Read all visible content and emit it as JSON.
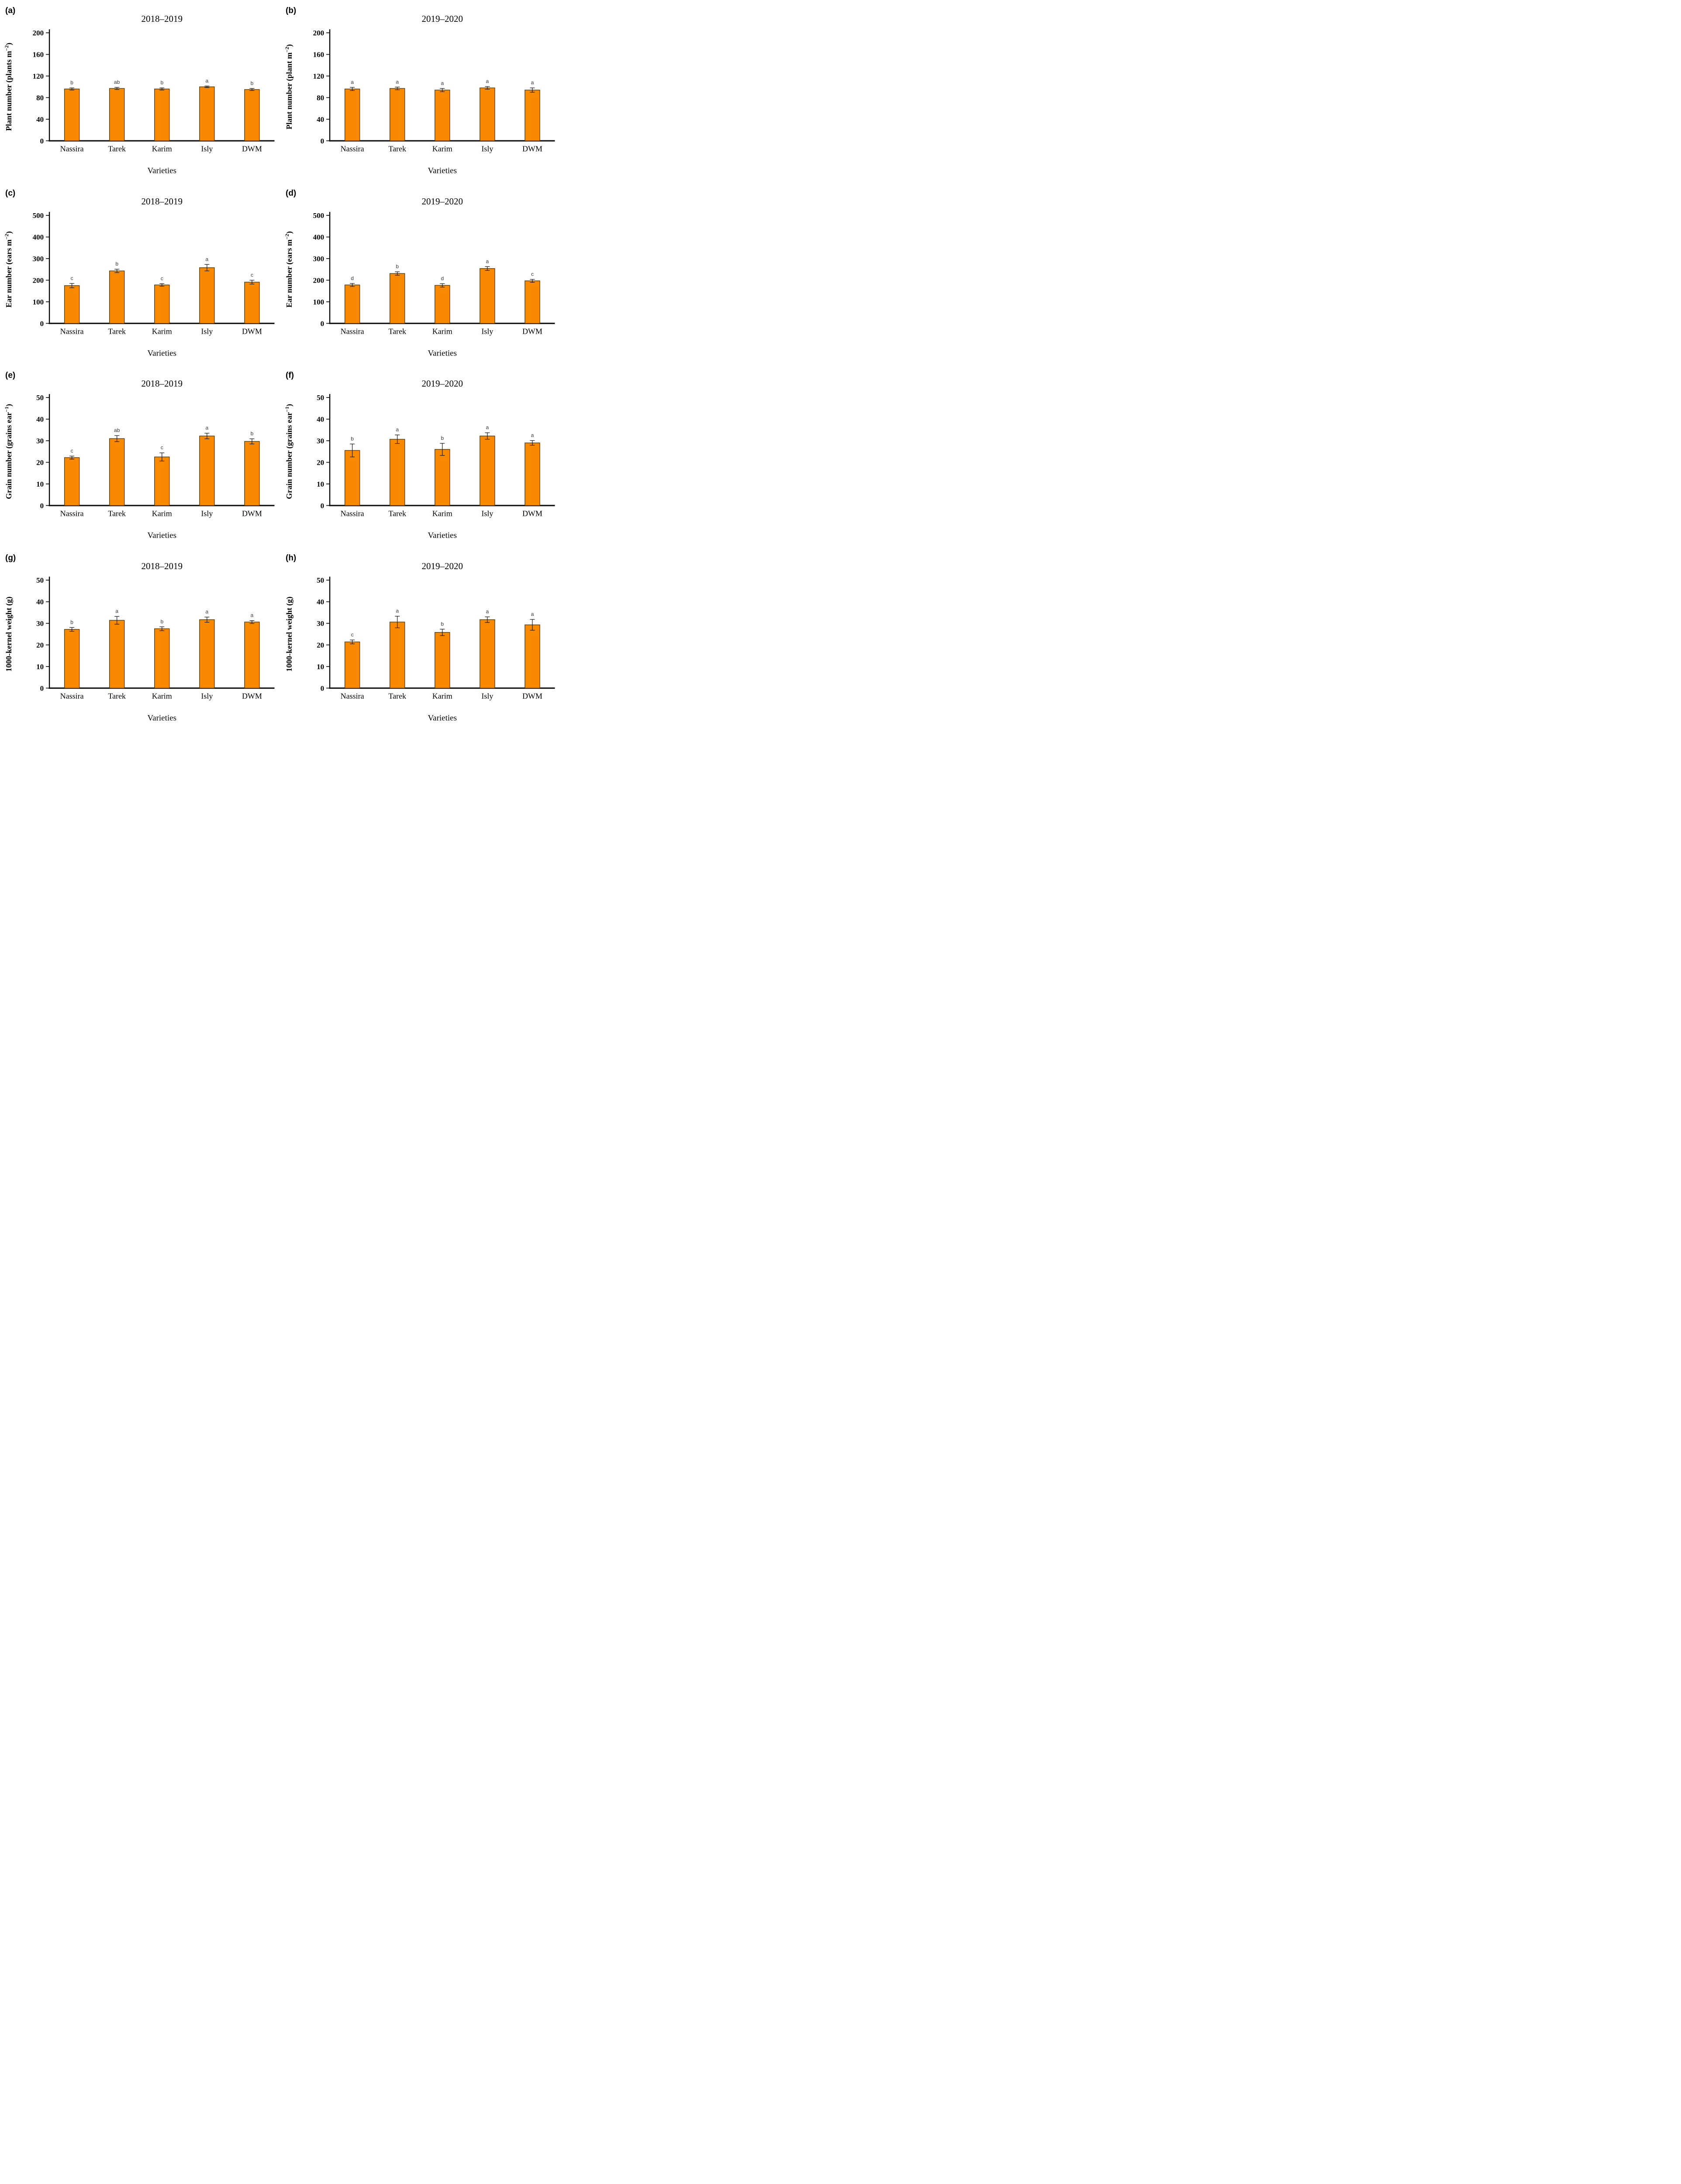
{
  "figure": {
    "bar_fill": "#F98A00",
    "bar_stroke": "#5A3A00",
    "error_bar_color": "#111111",
    "letter_color": "#333333"
  },
  "chart_data": [
    {
      "id": "a",
      "panel_label": "(a)",
      "type": "bar",
      "title": "2018–2019",
      "ylabel": "Plant number (plants m−2)",
      "ylabel_parts": [
        [
          "t",
          "Plant number (plants m"
        ],
        [
          "sup",
          "−2"
        ],
        [
          "t",
          ")"
        ]
      ],
      "xlabel": "Varieties",
      "ylim": [
        0,
        200
      ],
      "yticks": [
        0,
        40,
        80,
        120,
        160,
        200
      ],
      "categories": [
        "Nassira",
        "Tarek",
        "Karim",
        "Isly",
        "DWM"
      ],
      "values": [
        96,
        97,
        96,
        100,
        95
      ],
      "errors": [
        2,
        2,
        2,
        1.5,
        2
      ],
      "letters": [
        "b",
        "ab",
        "b",
        "a",
        "b"
      ],
      "grid": false,
      "legend": "none"
    },
    {
      "id": "b",
      "panel_label": "(b)",
      "type": "bar",
      "title": "2019–2020",
      "ylabel": "Plant number (plant m−2)",
      "ylabel_parts": [
        [
          "t",
          "Plant number (plant m"
        ],
        [
          "sup",
          "−2"
        ],
        [
          "t",
          ")"
        ]
      ],
      "xlabel": "Varieties",
      "ylim": [
        0,
        200
      ],
      "yticks": [
        0,
        40,
        80,
        120,
        160,
        200
      ],
      "categories": [
        "Nassira",
        "Tarek",
        "Karim",
        "Isly",
        "DWM"
      ],
      "values": [
        96,
        97,
        94,
        98,
        94
      ],
      "errors": [
        3,
        2.5,
        3,
        2.5,
        4
      ],
      "letters": [
        "a",
        "a",
        "a",
        "a",
        "a"
      ],
      "grid": false,
      "legend": "none"
    },
    {
      "id": "c",
      "panel_label": "(c)",
      "type": "bar",
      "title": "2018–2019",
      "ylabel": "Ear number (ears m−2)",
      "ylabel_parts": [
        [
          "t",
          "Ear number (ears m"
        ],
        [
          "sup",
          "−2"
        ],
        [
          "t",
          ")"
        ]
      ],
      "xlabel": "Varieties",
      "ylim": [
        0,
        500
      ],
      "yticks": [
        0,
        100,
        200,
        300,
        400,
        500
      ],
      "categories": [
        "Nassira",
        "Tarek",
        "Karim",
        "Isly",
        "DWM"
      ],
      "values": [
        175,
        243,
        178,
        258,
        191
      ],
      "errors": [
        10,
        8,
        6,
        15,
        9
      ],
      "letters": [
        "c",
        "b",
        "c",
        "a",
        "c"
      ],
      "grid": false,
      "legend": "none"
    },
    {
      "id": "d",
      "panel_label": "(d)",
      "type": "bar",
      "title": "2019–2020",
      "ylabel": "Ear number (ears m−2)",
      "ylabel_parts": [
        [
          "t",
          "Ear number (ears m"
        ],
        [
          "sup",
          "−2"
        ],
        [
          "t",
          ")"
        ]
      ],
      "xlabel": "Varieties",
      "ylim": [
        0,
        500
      ],
      "yticks": [
        0,
        100,
        200,
        300,
        400,
        500
      ],
      "categories": [
        "Nassira",
        "Tarek",
        "Karim",
        "Isly",
        "DWM"
      ],
      "values": [
        178,
        231,
        176,
        254,
        197
      ],
      "errors": [
        7,
        8,
        8,
        9,
        7
      ],
      "letters": [
        "d",
        "b",
        "d",
        "a",
        "c"
      ],
      "grid": false,
      "legend": "none"
    },
    {
      "id": "e",
      "panel_label": "(e)",
      "type": "bar",
      "title": "2018–2019",
      "ylabel": "Grain number (grains ear−1)",
      "ylabel_parts": [
        [
          "t",
          "Grain number (grains ear"
        ],
        [
          "sup",
          "−1"
        ],
        [
          "t",
          ")"
        ]
      ],
      "xlabel": "Varieties",
      "ylim": [
        0,
        50
      ],
      "yticks": [
        0,
        10,
        20,
        30,
        40,
        50
      ],
      "categories": [
        "Nassira",
        "Tarek",
        "Karim",
        "Isly",
        "DWM"
      ],
      "values": [
        22.2,
        31,
        22.5,
        32.2,
        29.7
      ],
      "errors": [
        0.7,
        1.4,
        1.9,
        1.3,
        1.2
      ],
      "letters": [
        "c",
        "ab",
        "c",
        "a",
        "b"
      ],
      "grid": false,
      "legend": "none"
    },
    {
      "id": "f",
      "panel_label": "(f)",
      "type": "bar",
      "title": "2019–2020",
      "ylabel": "Grain number (grains ear−1)",
      "ylabel_parts": [
        [
          "t",
          "Grain number (grains ear"
        ],
        [
          "sup",
          "−1"
        ],
        [
          "t",
          ")"
        ]
      ],
      "xlabel": "Varieties",
      "ylim": [
        0,
        50
      ],
      "yticks": [
        0,
        10,
        20,
        30,
        40,
        50
      ],
      "categories": [
        "Nassira",
        "Tarek",
        "Karim",
        "Isly",
        "DWM"
      ],
      "values": [
        25.5,
        30.7,
        26,
        32.2,
        29
      ],
      "errors": [
        3,
        2,
        2.8,
        1.5,
        1.1
      ],
      "letters": [
        "b",
        "a",
        "b",
        "a",
        "a"
      ],
      "grid": false,
      "legend": "none"
    },
    {
      "id": "g",
      "panel_label": "(g)",
      "type": "bar",
      "title": "2018–2019",
      "ylabel": "1000-kernel weight (g)",
      "ylabel_parts": [
        [
          "t",
          "1000-kernel weight (g)"
        ]
      ],
      "xlabel": "Varieties",
      "ylim": [
        0,
        50
      ],
      "yticks": [
        0,
        10,
        20,
        30,
        40,
        50
      ],
      "categories": [
        "Nassira",
        "Tarek",
        "Karim",
        "Isly",
        "DWM"
      ],
      "values": [
        27.2,
        31.4,
        27.5,
        31.7,
        30.6
      ],
      "errors": [
        0.9,
        1.8,
        0.9,
        1.2,
        0.7
      ],
      "letters": [
        "b",
        "a",
        "b",
        "a",
        "a"
      ],
      "grid": false,
      "legend": "none"
    },
    {
      "id": "h",
      "panel_label": "(h)",
      "type": "bar",
      "title": "2019–2020",
      "ylabel": "1000-kernel weight (g)",
      "ylabel_parts": [
        [
          "t",
          "1000-kernel weight (g)"
        ]
      ],
      "xlabel": "Varieties",
      "ylim": [
        0,
        50
      ],
      "yticks": [
        0,
        10,
        20,
        30,
        40,
        50
      ],
      "categories": [
        "Nassira",
        "Tarek",
        "Karim",
        "Isly",
        "DWM"
      ],
      "values": [
        21.4,
        30.6,
        25.8,
        31.7,
        29.3
      ],
      "errors": [
        0.9,
        2.7,
        1.5,
        1.3,
        2.5
      ],
      "letters": [
        "c",
        "a",
        "b",
        "a",
        "a"
      ],
      "grid": false,
      "legend": "none"
    }
  ]
}
